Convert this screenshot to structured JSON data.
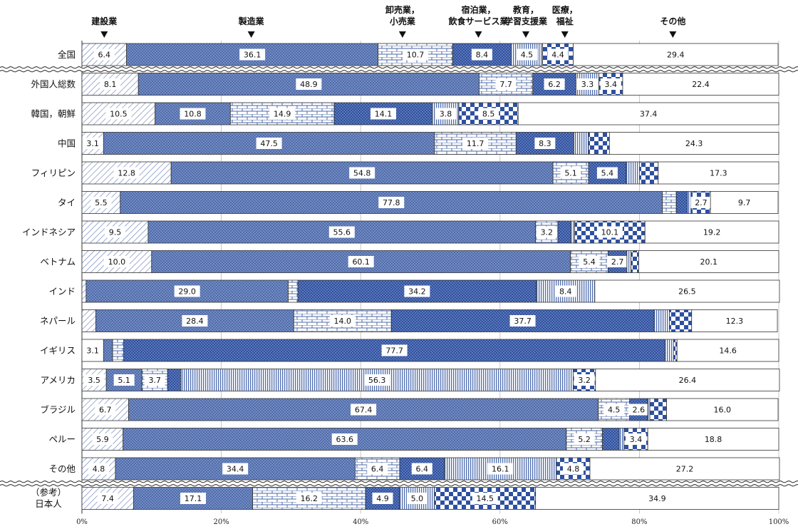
{
  "chart_data": {
    "type": "bar",
    "orientation": "horizontal",
    "stacked": true,
    "categories_header": [
      {
        "label": [
          "建設業"
        ],
        "x_mark": 3.2
      },
      {
        "label": [
          "製造業"
        ],
        "x_mark": 24.3
      },
      {
        "label": [
          "卸売業，",
          "小売業"
        ],
        "x_mark": 46.0
      },
      {
        "label": [
          "宿泊業，",
          "飲食サービス業"
        ],
        "x_mark": 56.9
      },
      {
        "label": [
          "教育，",
          "学習支援業"
        ],
        "x_mark": 63.7
      },
      {
        "label": [
          "医療，",
          "福祉"
        ],
        "x_mark": 69.3
      },
      {
        "label": [
          "その他"
        ],
        "x_mark": 84.8
      }
    ],
    "series_patterns": [
      "diag",
      "cross",
      "brick",
      "dot",
      "vline",
      "check",
      "plain"
    ],
    "rows": [
      {
        "label": "全国",
        "values": [
          6.4,
          36.1,
          10.7,
          8.4,
          4.5,
          4.4,
          29.4
        ],
        "labels": [
          "6.4",
          "36.1",
          "10.7",
          "8.4",
          "4.5",
          "4.4",
          "29.4"
        ]
      },
      {
        "label": "外国人総数",
        "values": [
          8.1,
          48.9,
          7.7,
          6.2,
          3.3,
          3.4,
          22.4
        ],
        "labels": [
          "8.1",
          "48.9",
          "7.7",
          "6.2",
          "3.3",
          "3.4",
          "22.4"
        ]
      },
      {
        "label": "韓国，朝鮮",
        "values": [
          10.5,
          10.8,
          14.9,
          14.1,
          3.8,
          8.5,
          37.4
        ],
        "labels": [
          "10.5",
          "10.8",
          "14.9",
          "14.1",
          "3.8",
          "8.5",
          "37.4"
        ]
      },
      {
        "label": "中国",
        "values": [
          3.1,
          47.5,
          11.7,
          8.3,
          2.1,
          3.0,
          24.3
        ],
        "labels": [
          "3.1",
          "47.5",
          "11.7",
          "8.3",
          "",
          "",
          "24.3"
        ]
      },
      {
        "label": "フィリピン",
        "values": [
          12.8,
          54.8,
          5.1,
          5.4,
          1.9,
          2.7,
          17.3
        ],
        "labels": [
          "12.8",
          "54.8",
          "5.1",
          "5.4",
          "",
          "",
          "17.3"
        ]
      },
      {
        "label": "タイ",
        "values": [
          5.5,
          77.8,
          2.0,
          1.6,
          0.6,
          2.7,
          9.7
        ],
        "labels": [
          "5.5",
          "77.8",
          "",
          "",
          "",
          "2.7",
          "9.7"
        ]
      },
      {
        "label": "インドネシア",
        "values": [
          9.5,
          55.6,
          3.2,
          1.9,
          0.5,
          10.1,
          19.2
        ],
        "labels": [
          "9.5",
          "55.6",
          "3.2",
          "",
          "",
          "10.1",
          "19.2"
        ]
      },
      {
        "label": "ベトナム",
        "values": [
          10.0,
          60.1,
          5.4,
          2.7,
          0.6,
          1.1,
          20.1
        ],
        "labels": [
          "10.0",
          "60.1",
          "5.4",
          "2.7",
          "",
          "",
          "20.1"
        ]
      },
      {
        "label": "インド",
        "values": [
          0.6,
          29.0,
          1.4,
          34.2,
          8.4,
          0.0,
          26.5
        ],
        "labels": [
          "",
          "29.0",
          "",
          "34.2",
          "8.4",
          "",
          "26.5"
        ]
      },
      {
        "label": "ネパール",
        "values": [
          2.0,
          28.4,
          14.0,
          37.7,
          2.2,
          3.2,
          12.3
        ],
        "labels": [
          "",
          "28.4",
          "14.0",
          "37.7",
          "",
          "",
          "12.3"
        ]
      },
      {
        "label": "イギリス",
        "values": [
          3.1,
          1.3,
          1.6,
          77.7,
          1.2,
          0.5,
          14.6
        ],
        "labels": [
          "3.1",
          "",
          "",
          "77.7",
          "",
          "",
          "14.6"
        ],
        "patterns": [
          "plain",
          "cross",
          "brick",
          "dot",
          "vline",
          "check",
          "plain"
        ]
      },
      {
        "label": "アメリカ",
        "values": [
          3.5,
          5.1,
          3.7,
          1.9,
          56.3,
          3.2,
          26.4
        ],
        "labels": [
          "3.5",
          "5.1",
          "3.7",
          "",
          "56.3",
          "3.2",
          "26.4"
        ]
      },
      {
        "label": "ブラジル",
        "values": [
          6.7,
          67.4,
          4.5,
          2.6,
          0.3,
          2.4,
          16.0
        ],
        "labels": [
          "6.7",
          "67.4",
          "4.5",
          "2.6",
          "",
          "",
          "16.0"
        ]
      },
      {
        "label": "ペルー",
        "values": [
          5.9,
          63.6,
          5.2,
          2.4,
          0.7,
          3.4,
          18.8
        ],
        "labels": [
          "5.9",
          "63.6",
          "5.2",
          "",
          "",
          "3.4",
          "18.8"
        ]
      },
      {
        "label": "その他",
        "values": [
          4.8,
          34.4,
          6.4,
          6.4,
          16.1,
          4.8,
          27.2
        ],
        "labels": [
          "4.8",
          "34.4",
          "6.4",
          "6.4",
          "16.1",
          "4.8",
          "27.2"
        ]
      },
      {
        "label": "（参考）\n日本人",
        "values": [
          7.4,
          17.1,
          16.2,
          4.9,
          5.0,
          14.5,
          34.9
        ],
        "labels": [
          "7.4",
          "17.1",
          "16.2",
          "4.9",
          "5.0",
          "14.5",
          "34.9"
        ]
      }
    ],
    "x_ticks": [
      "0%",
      "20%",
      "40%",
      "60%",
      "80%",
      "100%"
    ],
    "xlim": [
      0,
      100
    ],
    "break_after_rows": [
      0,
      14
    ],
    "colors": {
      "fill": "#3f5fa3",
      "dark": "#2b4a8f",
      "outline": "#333333",
      "background": "#ffffff"
    }
  }
}
